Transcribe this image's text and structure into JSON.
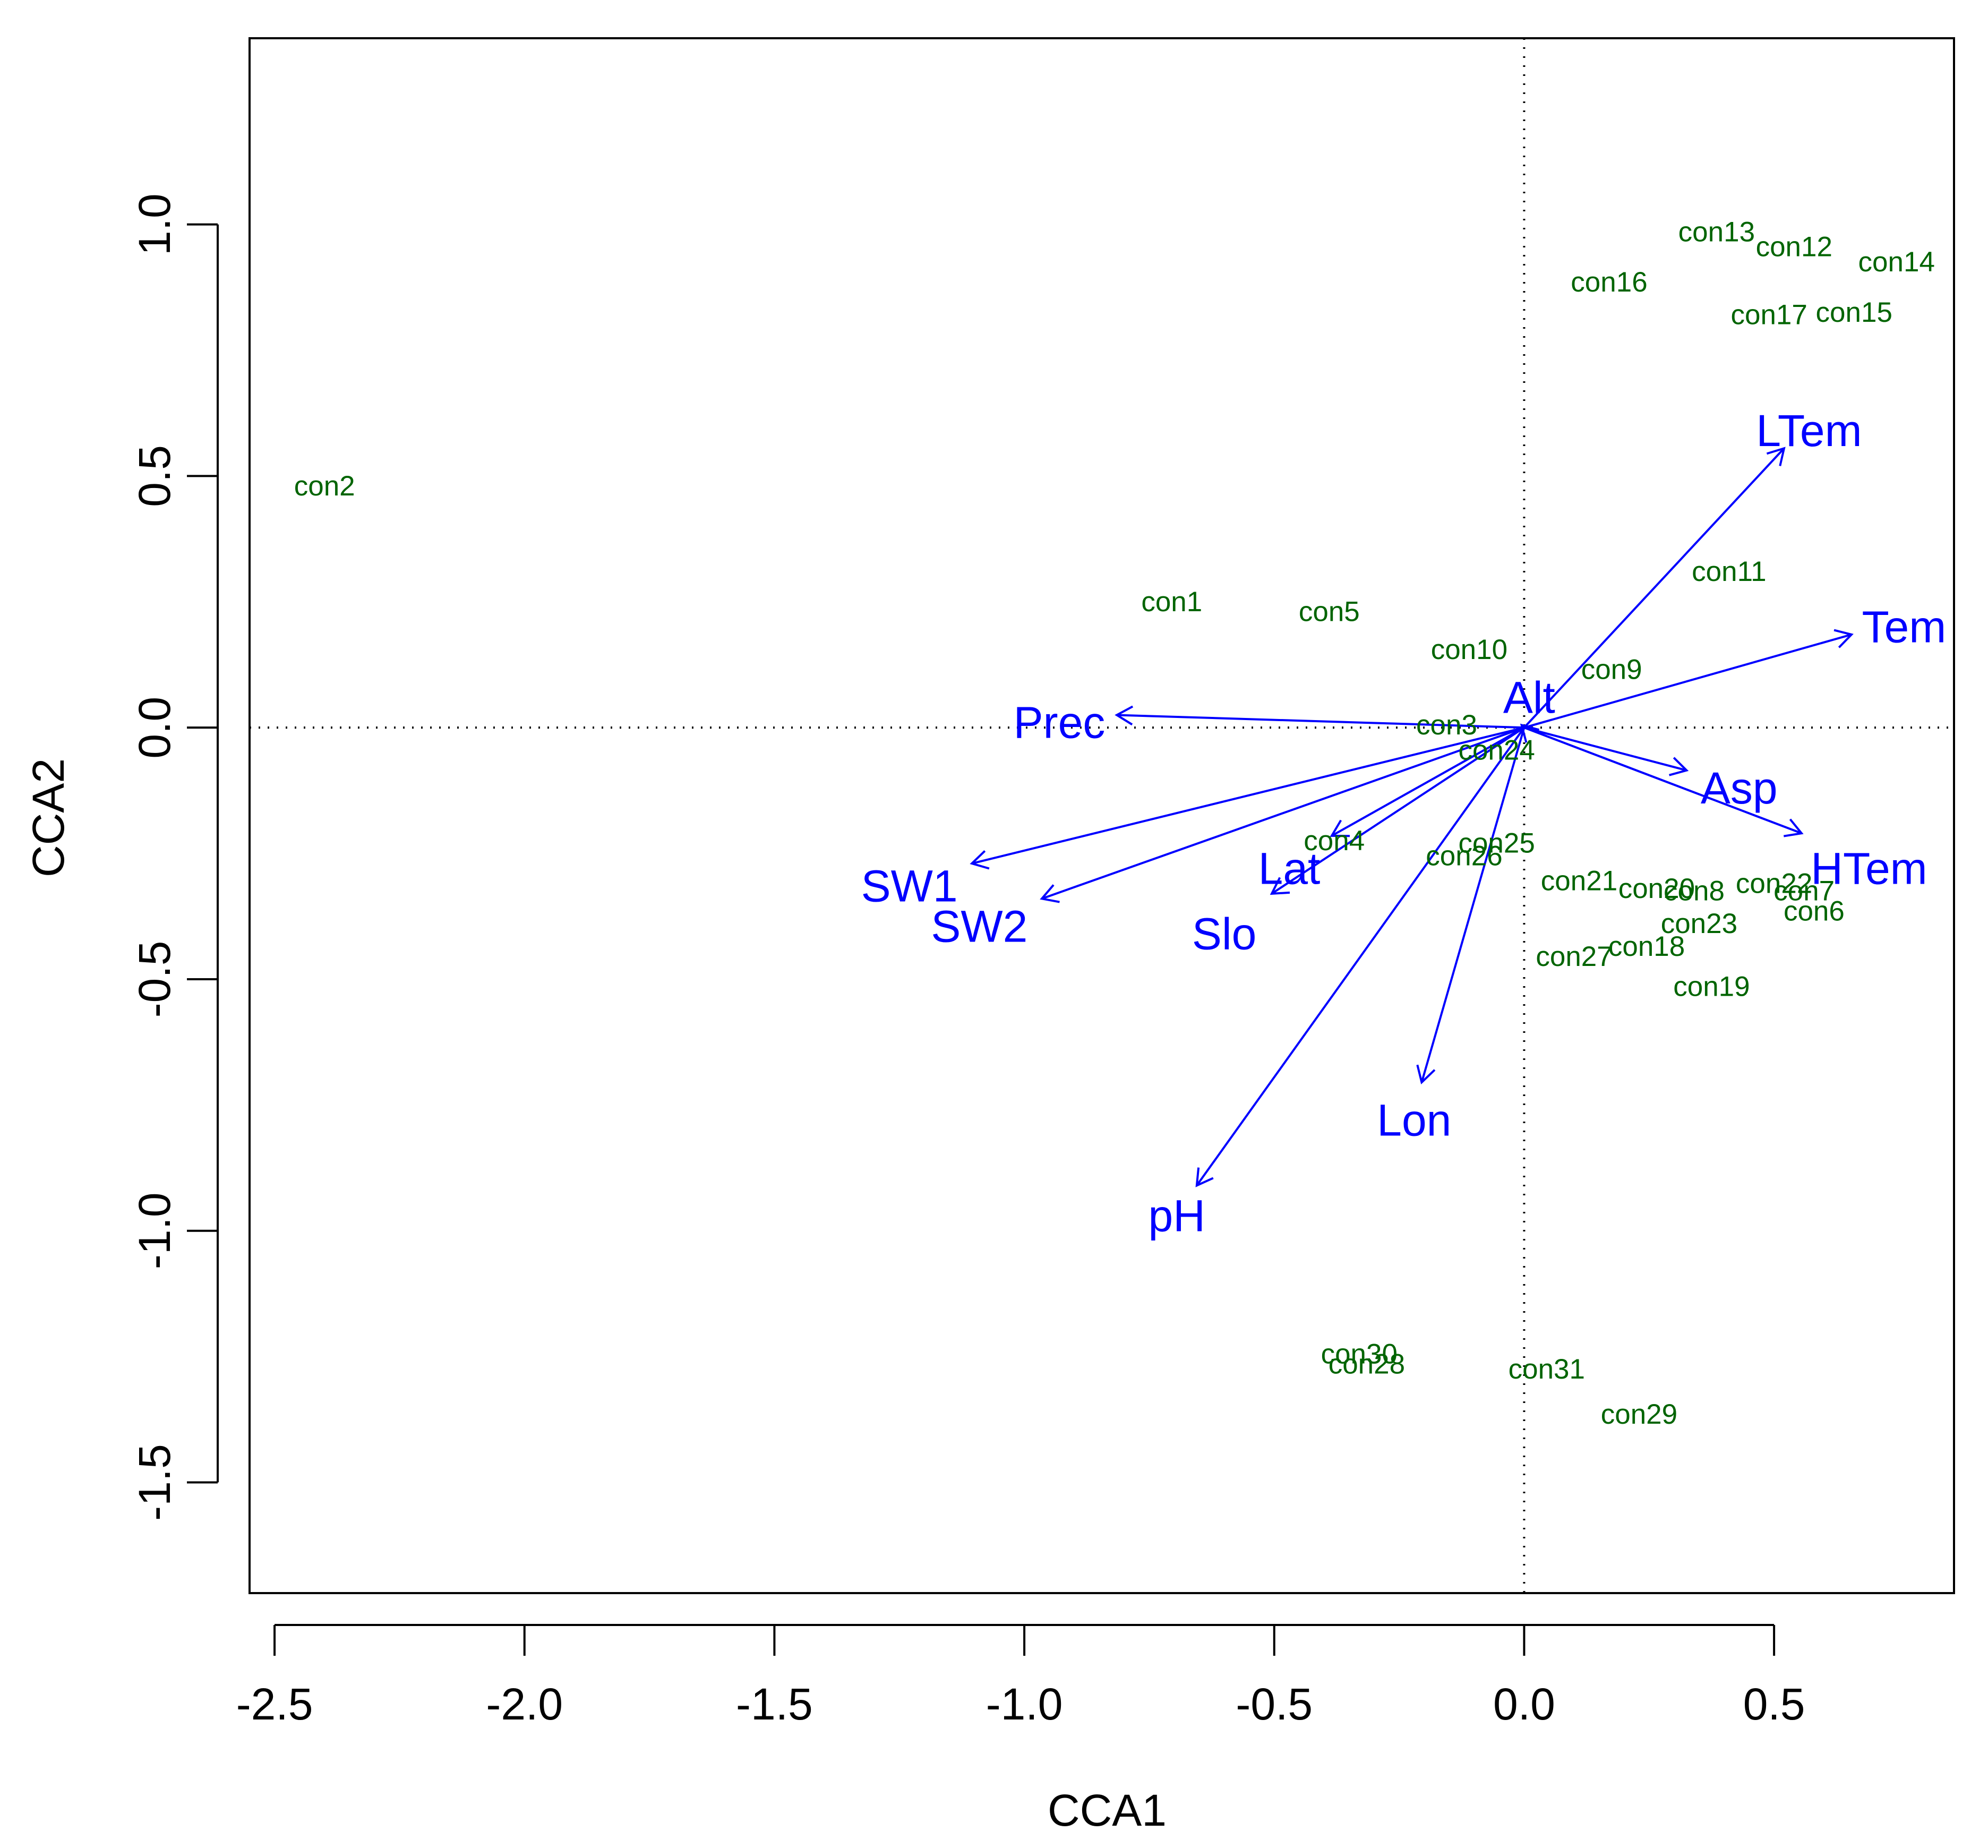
{
  "chart_data": {
    "type": "scatter",
    "subtype": "CCA biplot",
    "title": "",
    "xlabel": "CCA1",
    "ylabel": "CCA2",
    "xlim": [
      -2.55,
      0.86
    ],
    "ylim": [
      -1.72,
      1.37
    ],
    "xticks": [
      -2.5,
      -2.0,
      -1.5,
      -1.0,
      -0.5,
      0.0,
      0.5
    ],
    "xtick_labels": [
      "-2.5",
      "-2.0",
      "-1.5",
      "-1.0",
      "-0.5",
      "0.0",
      "0.5"
    ],
    "yticks": [
      -1.5,
      -1.0,
      -0.5,
      0.0,
      0.5,
      1.0
    ],
    "ytick_labels": [
      "-1.5",
      "-1.0",
      "-0.5",
      "0.0",
      "0.5",
      "1.0"
    ],
    "reference_lines": {
      "x": 0,
      "y": 0,
      "style": "dotted"
    },
    "colors": {
      "sites": "#006400",
      "env": "#0000ff",
      "axes": "#000000"
    },
    "sites": [
      {
        "label": "con1",
        "x": -0.705,
        "y": 0.25
      },
      {
        "label": "con2",
        "x": -2.4,
        "y": 0.48
      },
      {
        "label": "con3",
        "x": -0.155,
        "y": 0.005
      },
      {
        "label": "con4",
        "x": -0.38,
        "y": -0.225
      },
      {
        "label": "con5",
        "x": -0.39,
        "y": 0.23
      },
      {
        "label": "con6",
        "x": 0.58,
        "y": -0.365
      },
      {
        "label": "con7",
        "x": 0.56,
        "y": -0.325
      },
      {
        "label": "con8",
        "x": 0.34,
        "y": -0.325
      },
      {
        "label": "con9",
        "x": 0.175,
        "y": 0.115
      },
      {
        "label": "con10",
        "x": -0.11,
        "y": 0.155
      },
      {
        "label": "con11",
        "x": 0.41,
        "y": 0.31
      },
      {
        "label": "con12",
        "x": 0.54,
        "y": 0.955
      },
      {
        "label": "con13",
        "x": 0.385,
        "y": 0.985
      },
      {
        "label": "con14",
        "x": 0.745,
        "y": 0.925
      },
      {
        "label": "con15",
        "x": 0.66,
        "y": 0.825
      },
      {
        "label": "con16",
        "x": 0.17,
        "y": 0.885
      },
      {
        "label": "con17",
        "x": 0.49,
        "y": 0.82
      },
      {
        "label": "con18",
        "x": 0.245,
        "y": -0.435
      },
      {
        "label": "con19",
        "x": 0.375,
        "y": -0.515
      },
      {
        "label": "con20",
        "x": 0.265,
        "y": -0.32
      },
      {
        "label": "con21",
        "x": 0.11,
        "y": -0.305
      },
      {
        "label": "con22",
        "x": 0.5,
        "y": -0.31
      },
      {
        "label": "con23",
        "x": 0.35,
        "y": -0.39
      },
      {
        "label": "con24",
        "x": -0.055,
        "y": -0.045
      },
      {
        "label": "con25",
        "x": -0.055,
        "y": -0.23
      },
      {
        "label": "con26",
        "x": -0.12,
        "y": -0.255
      },
      {
        "label": "con27",
        "x": 0.1,
        "y": -0.455
      },
      {
        "label": "con28",
        "x": -0.315,
        "y": -1.265
      },
      {
        "label": "con29",
        "x": 0.23,
        "y": -1.365
      },
      {
        "label": "con30",
        "x": -0.33,
        "y": -1.245
      },
      {
        "label": "con31",
        "x": 0.045,
        "y": -1.275
      }
    ],
    "environmental_vectors": [
      {
        "label": "LTem",
        "x": 0.52,
        "y": 0.555,
        "label_x": 0.57,
        "label_y": 0.59
      },
      {
        "label": "Tem",
        "x": 0.655,
        "y": 0.185,
        "label_x": 0.76,
        "label_y": 0.2
      },
      {
        "label": "Asp",
        "x": 0.325,
        "y": -0.085,
        "label_x": 0.43,
        "label_y": -0.12
      },
      {
        "label": "HTem",
        "x": 0.555,
        "y": -0.21,
        "label_x": 0.69,
        "label_y": -0.28
      },
      {
        "label": "Alt",
        "x": -0.005,
        "y": 0.005,
        "label_x": 0.01,
        "label_y": 0.06
      },
      {
        "label": "Prec",
        "x": -0.815,
        "y": 0.025,
        "label_x": -0.93,
        "label_y": 0.01
      },
      {
        "label": "SW1",
        "x": -1.105,
        "y": -0.27,
        "label_x": -1.23,
        "label_y": -0.315
      },
      {
        "label": "SW2",
        "x": -0.965,
        "y": -0.34,
        "label_x": -1.09,
        "label_y": -0.395
      },
      {
        "label": "Lat",
        "x": -0.385,
        "y": -0.215,
        "label_x": -0.47,
        "label_y": -0.28
      },
      {
        "label": "Slo",
        "x": -0.505,
        "y": -0.33,
        "label_x": -0.6,
        "label_y": -0.41
      },
      {
        "label": "Lon",
        "x": -0.205,
        "y": -0.705,
        "label_x": -0.22,
        "label_y": -0.78
      },
      {
        "label": "pH",
        "x": -0.655,
        "y": -0.91,
        "label_x": -0.695,
        "label_y": -0.97
      }
    ]
  }
}
